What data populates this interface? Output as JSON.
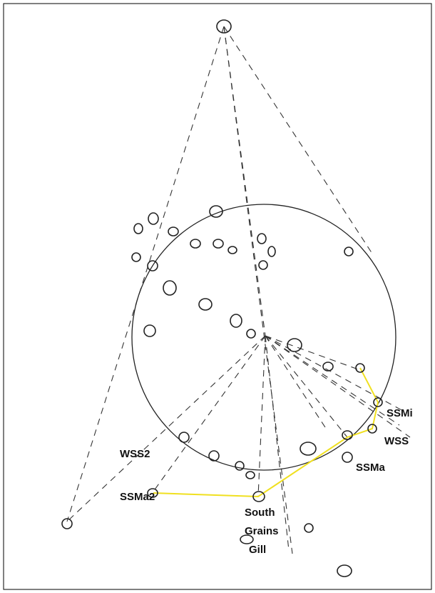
{
  "labels": {
    "ssmi": "SSMi",
    "wss": "WSS",
    "ssma": "SSMa",
    "wss2": "WSS2",
    "ssma2": "SSMa2",
    "south_grains_gill": [
      "South",
      "Grains",
      "Gill"
    ]
  }
}
